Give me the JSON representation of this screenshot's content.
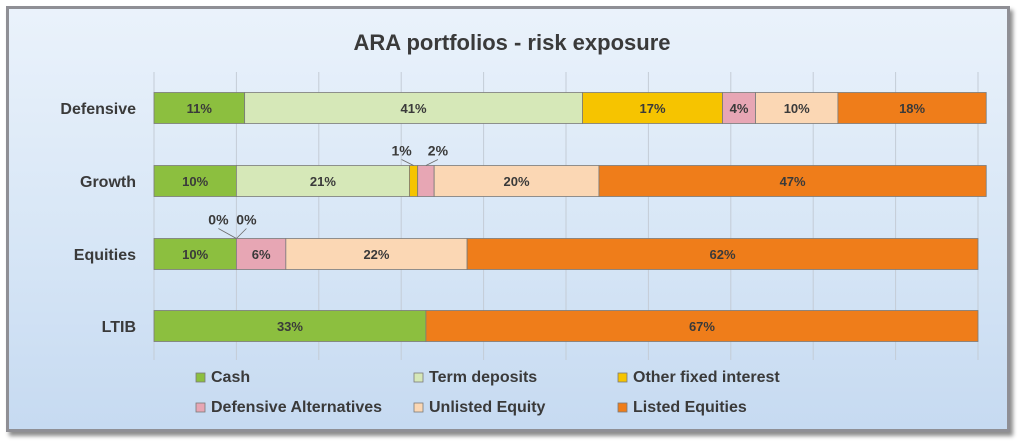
{
  "chart_data": {
    "type": "bar",
    "orientation": "horizontal",
    "stacked": "percent",
    "title": "ARA portfolios - risk exposure",
    "categories": [
      "Defensive",
      "Growth",
      "Equities",
      "LTIB"
    ],
    "series": [
      {
        "name": "Cash",
        "color": "#8cbf3f",
        "values": [
          11,
          10,
          10,
          33
        ]
      },
      {
        "name": "Term deposits",
        "color": "#d6e8b8",
        "values": [
          41,
          21,
          0,
          0
        ]
      },
      {
        "name": "Other fixed interest",
        "color": "#f6c400",
        "values": [
          17,
          1,
          0,
          0
        ]
      },
      {
        "name": "Defensive Alternatives",
        "color": "#e7a6b4",
        "values": [
          4,
          2,
          6,
          0
        ]
      },
      {
        "name": "Unlisted Equity",
        "color": "#fbd7b4",
        "values": [
          10,
          20,
          22,
          0
        ]
      },
      {
        "name": "Listed Equities",
        "color": "#ef7d1a",
        "values": [
          18,
          47,
          62,
          67
        ]
      }
    ],
    "grid": true,
    "legend": "bottom"
  }
}
